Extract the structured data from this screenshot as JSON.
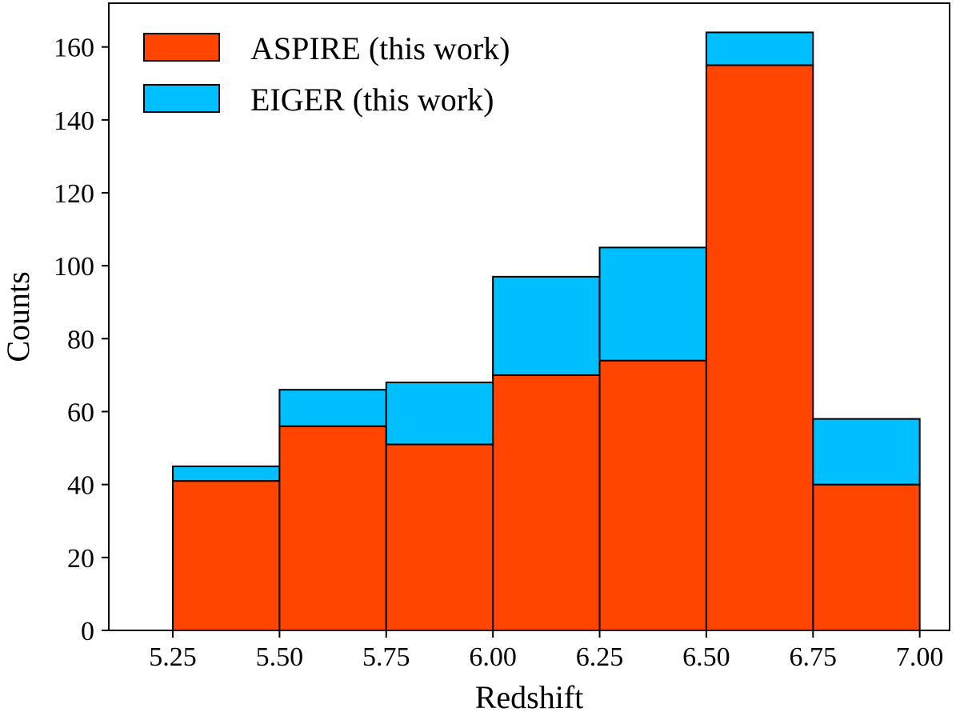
{
  "chart_data": {
    "type": "bar",
    "stacked": true,
    "bin_edges": [
      5.25,
      5.5,
      5.75,
      6.0,
      6.25,
      6.5,
      6.75,
      7.0
    ],
    "xlabel": "Redshift",
    "ylabel": "Counts",
    "xlim": [
      5.1,
      7.07
    ],
    "ylim": [
      0,
      172
    ],
    "xticks": [
      5.25,
      5.5,
      5.75,
      6.0,
      6.25,
      6.5,
      6.75,
      7.0
    ],
    "xtick_labels": [
      "5.25",
      "5.50",
      "5.75",
      "6.00",
      "6.25",
      "6.50",
      "6.75",
      "7.00"
    ],
    "yticks": [
      0,
      20,
      40,
      60,
      80,
      100,
      120,
      140,
      160
    ],
    "ytick_labels": [
      "0",
      "20",
      "40",
      "60",
      "80",
      "100",
      "120",
      "140",
      "160"
    ],
    "grid": false,
    "legend_position": "top-left",
    "series": [
      {
        "name": "ASPIRE (this work)",
        "color": "#ff4500",
        "values": [
          41,
          56,
          51,
          70,
          74,
          155,
          40
        ]
      },
      {
        "name": "EIGER (this work)",
        "color": "#00bfff",
        "values": [
          4,
          10,
          17,
          27,
          31,
          9,
          18
        ]
      }
    ]
  }
}
